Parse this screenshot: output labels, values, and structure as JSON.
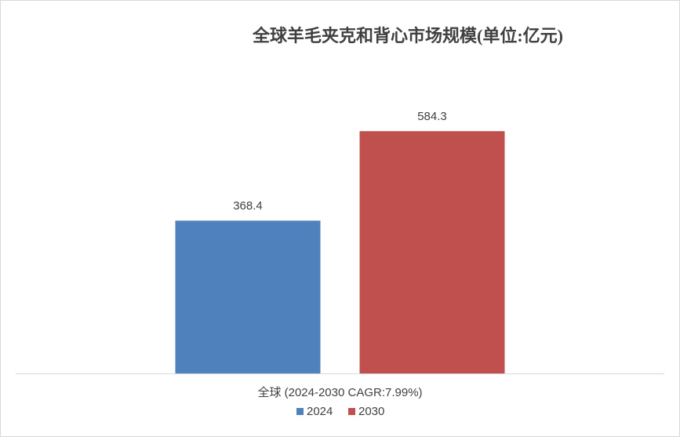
{
  "chart_data": {
    "type": "bar",
    "title": "全球羊毛夹克和背心市场规模(单位:亿元)",
    "categories": [
      "全球 (2024-2030 CAGR:7.99%)"
    ],
    "series": [
      {
        "name": "2024",
        "color": "#4f81bd",
        "values": [
          368.4
        ]
      },
      {
        "name": "2030",
        "color": "#c0504d",
        "values": [
          584.3
        ]
      }
    ],
    "ylim": [
      0,
      700
    ]
  }
}
